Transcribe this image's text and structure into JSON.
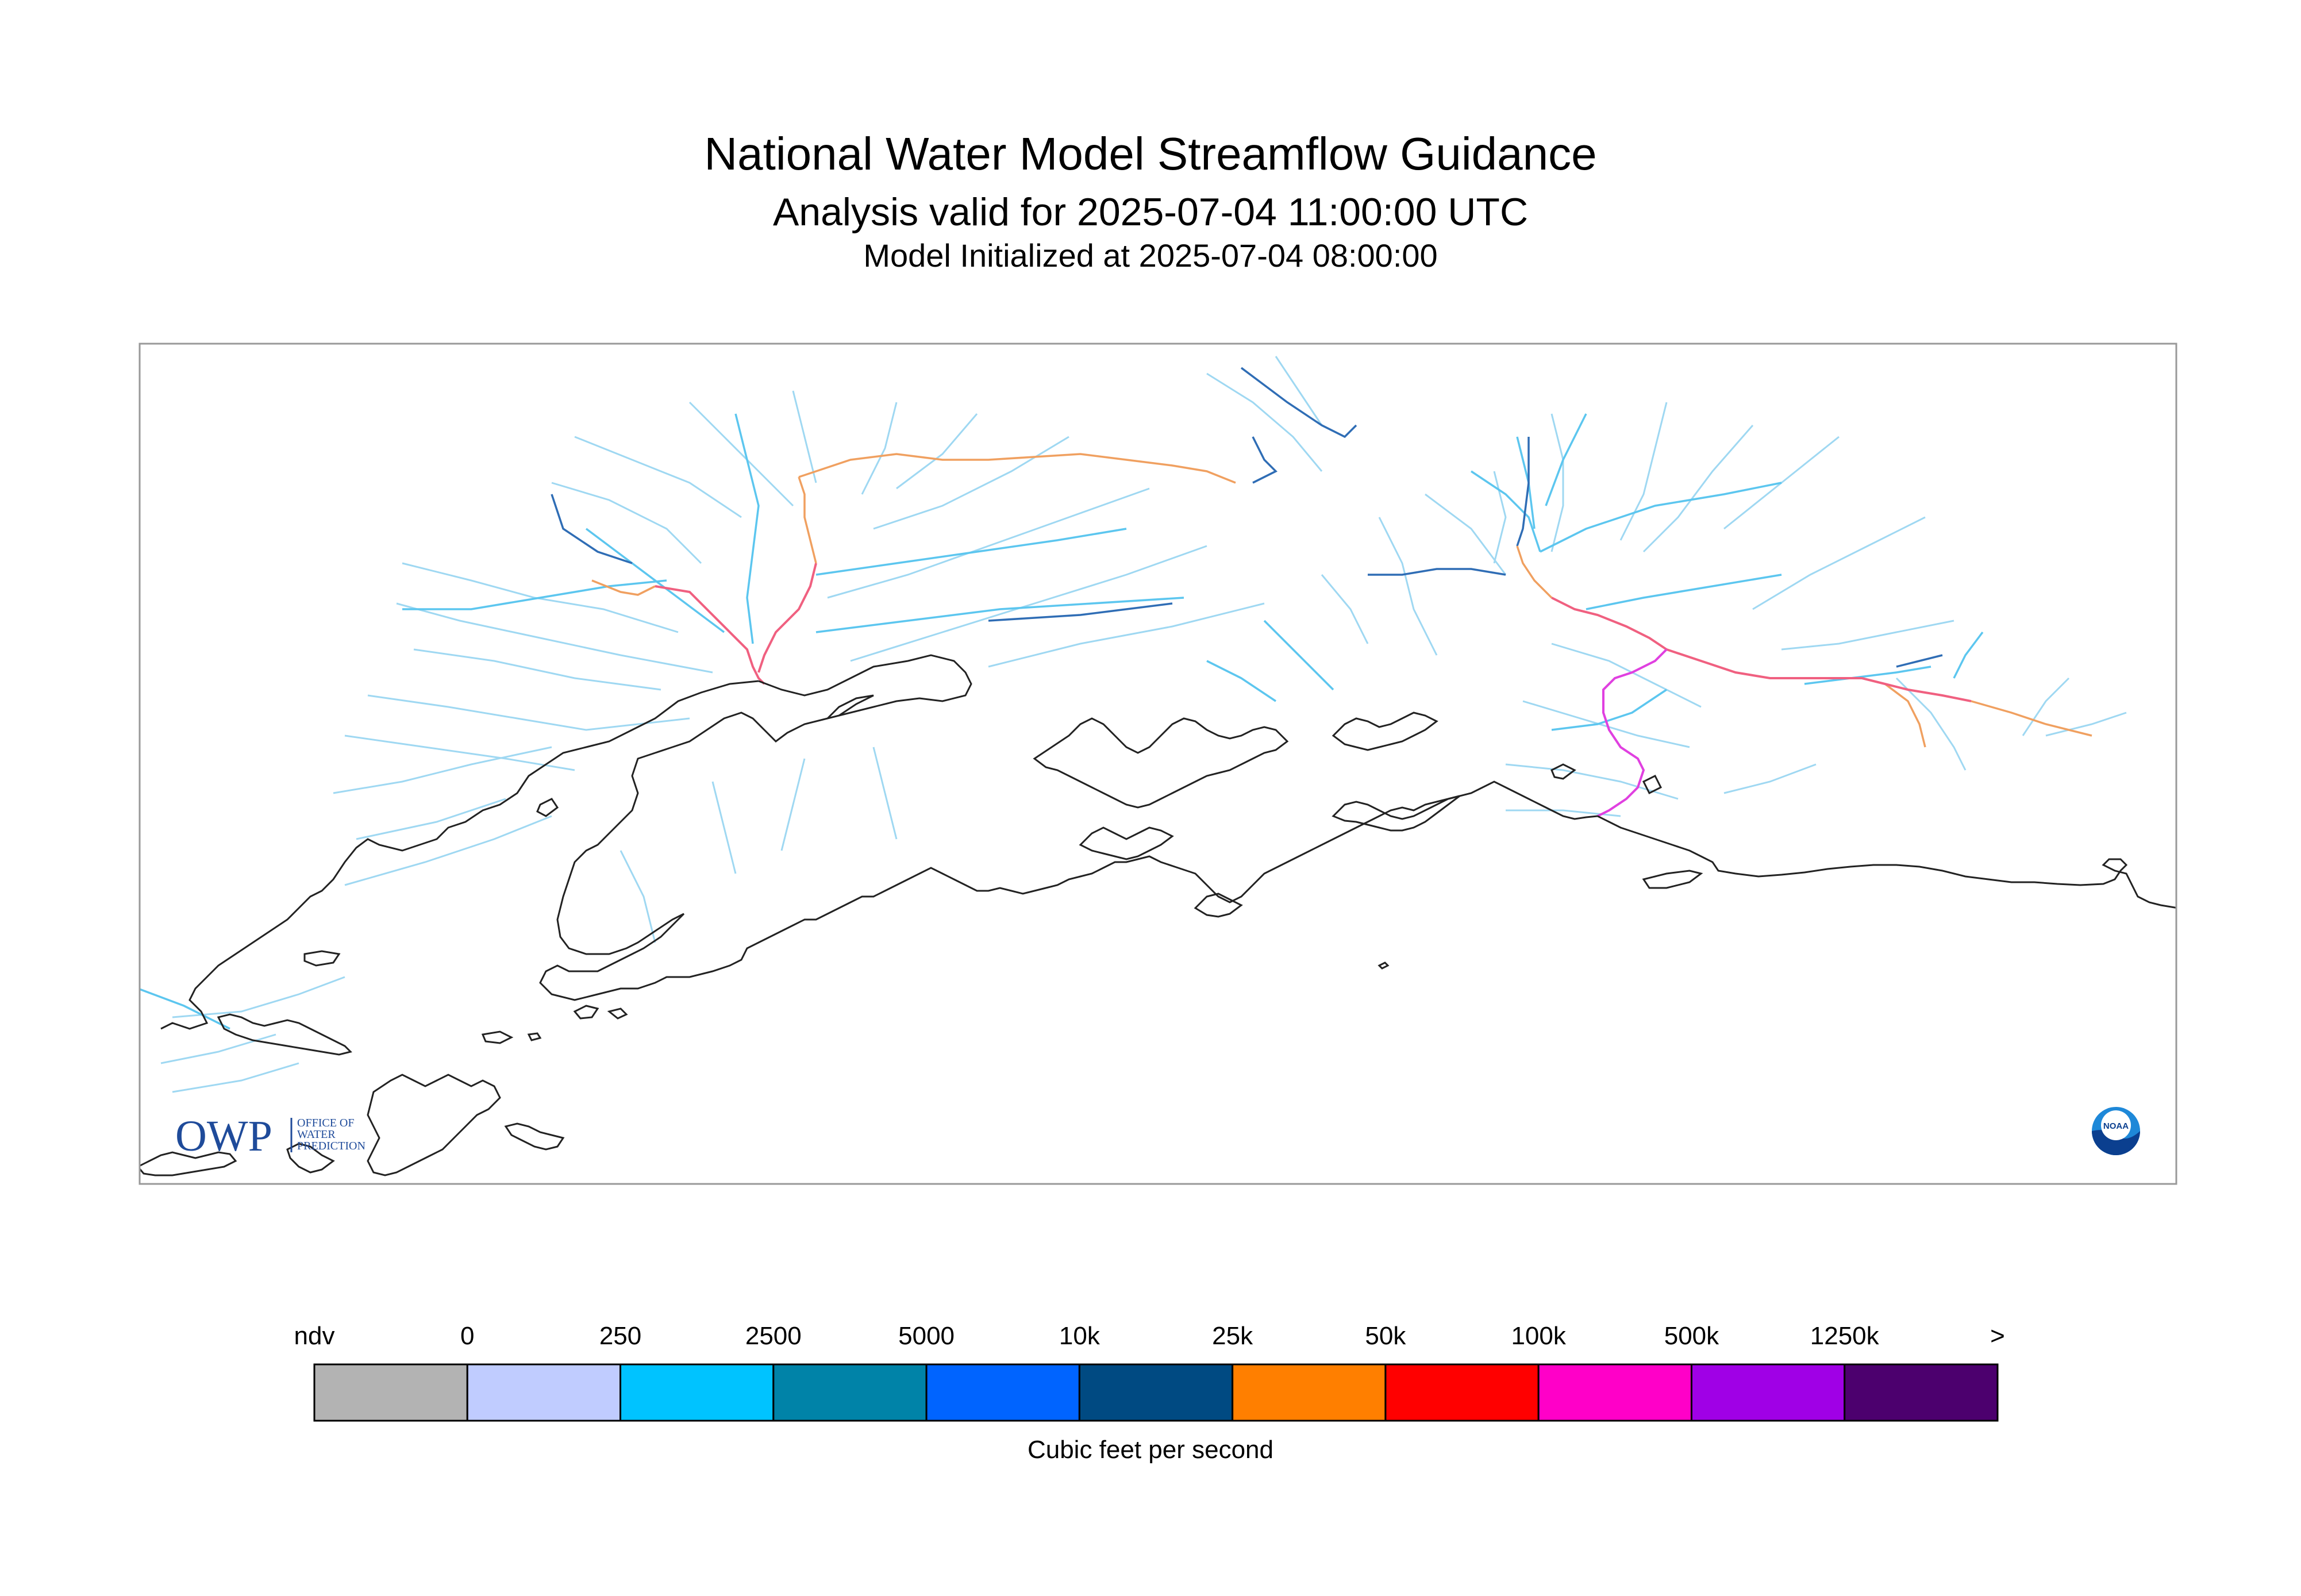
{
  "title": "National Water Model Streamflow Guidance",
  "subtitle": "Analysis valid for 2025-07-04 11:00:00 UTC",
  "init": "Model Initialized at 2025-07-04 08:00:00",
  "owp_logo": {
    "mark": "OWP",
    "text": [
      "OFFICE OF",
      "WATER",
      "PREDICTION"
    ]
  },
  "noaa_logo": {
    "text": "NOAA"
  },
  "colorbar": {
    "labels": [
      "ndv",
      "0",
      "250",
      "2500",
      "5000",
      "10k",
      "25k",
      "50k",
      "100k",
      "500k",
      "1250k",
      ">"
    ],
    "colors": [
      "#b3b3b3",
      "#c0ccff",
      "#00c3ff",
      "#0083a8",
      "#0064ff",
      "#004a82",
      "#ff7f00",
      "#ff0000",
      "#ff00c8",
      "#a000e6",
      "#4c006e"
    ],
    "units": "Cubic feet per second"
  },
  "colors": {
    "small_stream": "#9fd8f2",
    "stream": "#5cc6ef",
    "medium_stream": "#2f6db5",
    "large_stream": "#f0a060",
    "major_stream": "#f06080",
    "coast": "#222222"
  }
}
